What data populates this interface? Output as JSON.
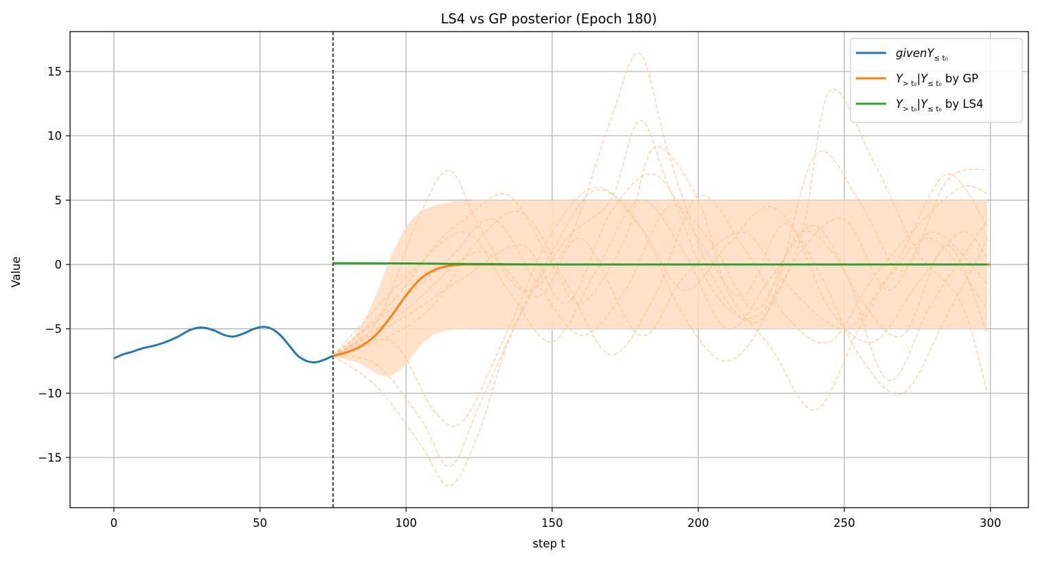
{
  "chart_data": {
    "type": "line",
    "title": "LS4 vs GP posterior (Epoch 180)",
    "xlabel": "step t",
    "ylabel": "Value",
    "xlim": [
      -15,
      313
    ],
    "ylim": [
      -18.9,
      18.1
    ],
    "xticks": [
      0,
      50,
      100,
      150,
      200,
      250,
      300
    ],
    "yticks": [
      -15,
      -10,
      -5,
      0,
      5,
      10,
      15
    ],
    "grid": true,
    "legend_position": "top-right",
    "cutoff_t0": 75,
    "colors": {
      "given": "#1f77b4",
      "gp": "#ff7f0e",
      "ls4": "#2ca02c",
      "band": "#ffddbf",
      "samples": "#ffbf86",
      "cutoff": "#000000",
      "grid": "#b0b0b0"
    },
    "legend": [
      {
        "key": "given",
        "text": "given",
        "math": "Y",
        "sub": "≤ t₀",
        "suffix": "",
        "italic_prefix": true
      },
      {
        "key": "gp",
        "text": "",
        "math": "Y",
        "sub": "> t₀",
        "math2": "|Y",
        "sub2": "≤ t₀",
        "suffix": " by GP"
      },
      {
        "key": "ls4",
        "text": "",
        "math": "Y",
        "sub": "> t₀",
        "math2": "|Y",
        "sub2": "≤ t₀",
        "suffix": " by LS4"
      }
    ],
    "series": [
      {
        "name": "givenY≤t0",
        "key": "given",
        "x": [
          0,
          3,
          6,
          10,
          14,
          18,
          22,
          26,
          30,
          34,
          38,
          41,
          44,
          48,
          51,
          54,
          57,
          60,
          63,
          66,
          69,
          72,
          75
        ],
        "y": [
          -7.3,
          -7.0,
          -6.8,
          -6.5,
          -6.3,
          -6.0,
          -5.6,
          -5.1,
          -4.9,
          -5.1,
          -5.5,
          -5.6,
          -5.4,
          -5.0,
          -4.85,
          -5.0,
          -5.5,
          -6.3,
          -7.1,
          -7.5,
          -7.6,
          -7.4,
          -7.1
        ]
      },
      {
        "name": "Y>t0|Y≤t0 by GP",
        "key": "gp",
        "x": [
          75,
          80,
          85,
          90,
          95,
          100,
          105,
          110,
          115,
          120,
          125,
          130,
          300
        ],
        "y": [
          -7.1,
          -6.8,
          -6.3,
          -5.4,
          -4.0,
          -2.4,
          -1.1,
          -0.4,
          -0.1,
          0.0,
          0.0,
          0.0,
          0.0
        ]
      },
      {
        "name": "Y>t0|Y≤t0 by LS4",
        "key": "ls4",
        "x": [
          75,
          100,
          125,
          150,
          200,
          250,
          299
        ],
        "y": [
          0.1,
          0.08,
          0.03,
          0.0,
          0.0,
          0.0,
          0.0
        ]
      }
    ],
    "band": {
      "x": [
        75,
        80,
        85,
        90,
        95,
        100,
        105,
        110,
        115,
        120,
        125,
        130,
        140,
        150,
        299
      ],
      "upper": [
        -7.0,
        -6.2,
        -4.6,
        -2.2,
        0.7,
        2.9,
        4.1,
        4.6,
        4.85,
        4.95,
        5.0,
        5.0,
        5.0,
        5.0,
        5.0
      ],
      "lower": [
        -7.2,
        -7.4,
        -7.8,
        -8.5,
        -8.6,
        -7.7,
        -6.3,
        -5.4,
        -5.1,
        -5.02,
        -5.0,
        -5.0,
        -5.0,
        -5.0,
        -5.0
      ]
    },
    "samples": [
      {
        "x": [
          75,
          90,
          105,
          115,
          125,
          140,
          155,
          170,
          180,
          190,
          205,
          220,
          235,
          250,
          265,
          280,
          299
        ],
        "y": [
          -7.1,
          -4.5,
          4.0,
          7.3,
          3.0,
          -2.0,
          1.5,
          11.2,
          16.4,
          8.5,
          -1.0,
          -4.5,
          1.0,
          3.5,
          -2.0,
          2.5,
          -1.5
        ]
      },
      {
        "x": [
          75,
          90,
          105,
          115,
          125,
          135,
          150,
          165,
          180,
          195,
          210,
          225,
          240,
          255,
          270,
          285,
          299
        ],
        "y": [
          -7.1,
          -9.5,
          -14.0,
          -17.2,
          -13.0,
          -6.0,
          1.0,
          5.8,
          3.0,
          -2.0,
          1.5,
          4.5,
          0.0,
          -7.0,
          -10.0,
          -4.0,
          2.0
        ]
      },
      {
        "x": [
          75,
          90,
          105,
          115,
          125,
          140,
          155,
          170,
          180,
          190,
          205,
          220,
          235,
          245,
          260,
          275,
          290,
          299
        ],
        "y": [
          -7.0,
          -7.8,
          -12.0,
          -15.7,
          -11.0,
          -3.5,
          2.0,
          5.0,
          11.2,
          6.0,
          -2.0,
          -4.0,
          2.0,
          13.5,
          8.0,
          1.0,
          -3.0,
          -10.0
        ]
      },
      {
        "x": [
          75,
          95,
          110,
          120,
          135,
          150,
          160,
          175,
          185,
          200,
          210,
          225,
          240,
          255,
          270,
          285,
          299
        ],
        "y": [
          -7.1,
          -3.0,
          1.5,
          3.5,
          5.4,
          0.0,
          -3.0,
          2.0,
          9.1,
          5.0,
          -2.0,
          -6.5,
          -11.3,
          -5.0,
          1.0,
          7.0,
          3.0
        ]
      },
      {
        "x": [
          75,
          95,
          110,
          120,
          135,
          150,
          165,
          180,
          195,
          210,
          225,
          240,
          255,
          270,
          285,
          299
        ],
        "y": [
          -7.1,
          -6.0,
          -11.5,
          -12.0,
          -5.0,
          2.5,
          6.0,
          3.0,
          -4.0,
          -7.5,
          -3.0,
          8.5,
          5.0,
          -0.5,
          6.5,
          7.4
        ]
      },
      {
        "x": [
          75,
          95,
          110,
          125,
          140,
          155,
          170,
          185,
          200,
          215,
          230,
          245,
          260,
          275,
          290,
          299
        ],
        "y": [
          -7.1,
          -5.5,
          -3.0,
          2.0,
          4.0,
          -1.5,
          -7.0,
          -2.5,
          5.3,
          1.5,
          -4.0,
          -6.0,
          -1.0,
          3.0,
          6.0,
          5.5
        ]
      },
      {
        "x": [
          75,
          100,
          115,
          130,
          145,
          160,
          175,
          190,
          205,
          220,
          235,
          250,
          265,
          280,
          299
        ],
        "y": [
          -7.1,
          -2.5,
          0.5,
          3.5,
          -1.5,
          -5.5,
          -2.0,
          4.5,
          1.5,
          -3.5,
          2.5,
          -0.5,
          -9.0,
          -3.0,
          3.5
        ]
      },
      {
        "x": [
          75,
          100,
          120,
          135,
          150,
          165,
          180,
          195,
          210,
          225,
          240,
          255,
          270,
          285,
          299
        ],
        "y": [
          -7.1,
          -1.0,
          2.5,
          -2.0,
          -6.0,
          -0.5,
          5.0,
          1.0,
          -5.0,
          -1.0,
          3.0,
          -2.5,
          -5.5,
          1.5,
          -5.4
        ]
      },
      {
        "x": [
          75,
          100,
          120,
          140,
          155,
          170,
          185,
          200,
          215,
          230,
          245,
          260,
          275,
          290,
          299
        ],
        "y": [
          -7.1,
          -4.0,
          -1.0,
          1.5,
          -3.0,
          4.0,
          7.0,
          2.0,
          -2.5,
          3.2,
          -3.5,
          -6.0,
          -1.5,
          2.5,
          0.5
        ]
      },
      {
        "x": [
          75,
          100,
          125,
          145,
          160,
          180,
          195,
          215,
          230,
          250,
          265,
          280,
          299
        ],
        "y": [
          -7.1,
          -3.5,
          1.0,
          -2.5,
          2.0,
          -5.5,
          -1.0,
          2.5,
          -1.5,
          -5.0,
          -1.0,
          2.0,
          -3.5
        ]
      }
    ]
  }
}
